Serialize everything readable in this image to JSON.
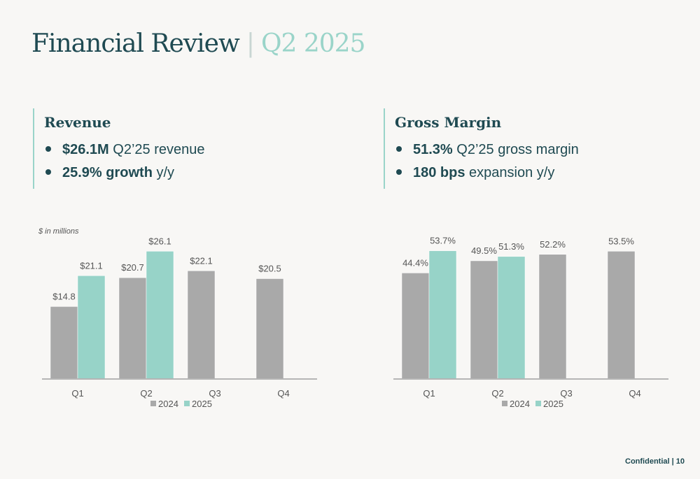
{
  "header": {
    "title": "Financial Review",
    "separator": "|",
    "period": "Q2 2025"
  },
  "revenue": {
    "title": "Revenue",
    "bullets": [
      {
        "bold": "$26.1M",
        "text": " Q2’25 revenue"
      },
      {
        "bold": "25.9% growth",
        "text": " y/y"
      }
    ],
    "note": "$ in millions"
  },
  "gross_margin": {
    "title": "Gross Margin",
    "bullets": [
      {
        "bold": "51.3%",
        "text": " Q2’25 gross margin"
      },
      {
        "bold": "180 bps",
        "text": " expansion y/y"
      }
    ]
  },
  "colors": {
    "series_2024": "#a9a9a9",
    "series_2025": "#97d3c8",
    "axis": "#b5b5b5",
    "label": "#555555"
  },
  "chart_data": [
    {
      "type": "bar",
      "categories": [
        "Q1",
        "Q2",
        "Q3",
        "Q4"
      ],
      "series": [
        {
          "name": "2024",
          "values": [
            14.8,
            20.7,
            22.1,
            20.5
          ],
          "labels": [
            "$14.8",
            "$20.7",
            "$22.1",
            "$20.5"
          ]
        },
        {
          "name": "2025",
          "values": [
            21.1,
            26.1,
            null,
            null
          ],
          "labels": [
            "$21.1",
            "$26.1",
            "",
            ""
          ]
        }
      ],
      "title": "",
      "xlabel": "",
      "ylabel": "",
      "ylim": [
        0,
        30
      ],
      "grid": false,
      "legend": "bottom"
    },
    {
      "type": "bar",
      "categories": [
        "Q1",
        "Q2",
        "Q3",
        "Q4"
      ],
      "series": [
        {
          "name": "2024",
          "values": [
            44.4,
            49.5,
            52.2,
            53.5
          ],
          "labels": [
            "44.4%",
            "49.5%",
            "52.2%",
            "53.5%"
          ]
        },
        {
          "name": "2025",
          "values": [
            53.7,
            51.3,
            null,
            null
          ],
          "labels": [
            "53.7%",
            "51.3%",
            "",
            ""
          ]
        }
      ],
      "title": "",
      "xlabel": "",
      "ylabel": "",
      "ylim": [
        0,
        61.5
      ],
      "grid": false,
      "legend": "bottom"
    }
  ],
  "footer": {
    "text": "Confidential | 10"
  }
}
